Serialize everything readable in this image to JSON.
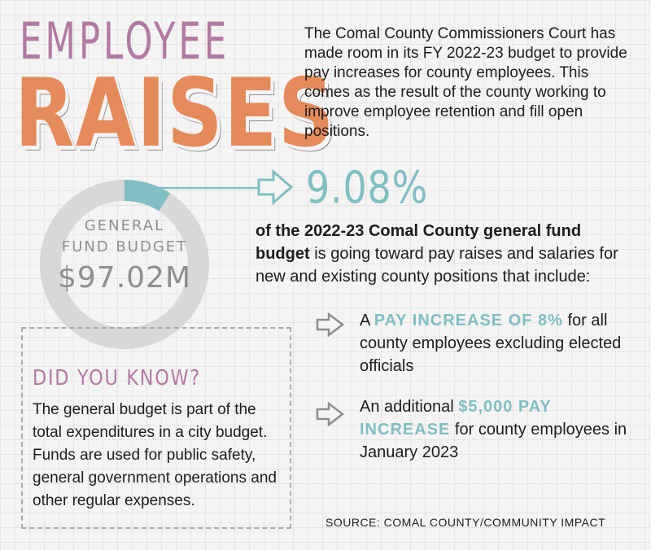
{
  "header": {
    "line1": "EMPLOYEE",
    "line2": "RAISES"
  },
  "intro": "The Comal County Commissioners Court has made room in its FY 2022-23 budget to provide pay increases for county employees. This comes as the result of the county working to improve employee retention and fill open positions.",
  "donut": {
    "label_line1": "GENERAL",
    "label_line2": "FUND BUDGET",
    "total": "$97.02M",
    "highlight_fraction": 0.0908,
    "colors": {
      "ring": "#d8d8d8",
      "highlight": "#80bfc2"
    }
  },
  "stat": {
    "percent": "9.08%",
    "desc_bold": "of the 2022-23 Comal County general fund budget",
    "desc_rest": " is going toward pay raises and salaries for new and existing county positions that include:"
  },
  "bullets": [
    {
      "pre": "A ",
      "highlight": "PAY INCREASE OF 8%",
      "post": " for all county employees excluding elected officials"
    },
    {
      "pre": "An additional ",
      "highlight": "$5,000 PAY INCREASE",
      "post": " for county employees in January 2023"
    }
  ],
  "did_you_know": {
    "title": "DID YOU KNOW?",
    "text": "The general budget is part of the total expenditures in a city budget. Funds are used for public safety, general government operations and other regular expenses."
  },
  "source": "SOURCE: COMAL COUNTY/COMMUNITY IMPACT",
  "colors": {
    "purple": "#b27aa3",
    "orange": "#e58a5b",
    "teal": "#80bfc2",
    "grid_bg": "#f5f4f4"
  }
}
